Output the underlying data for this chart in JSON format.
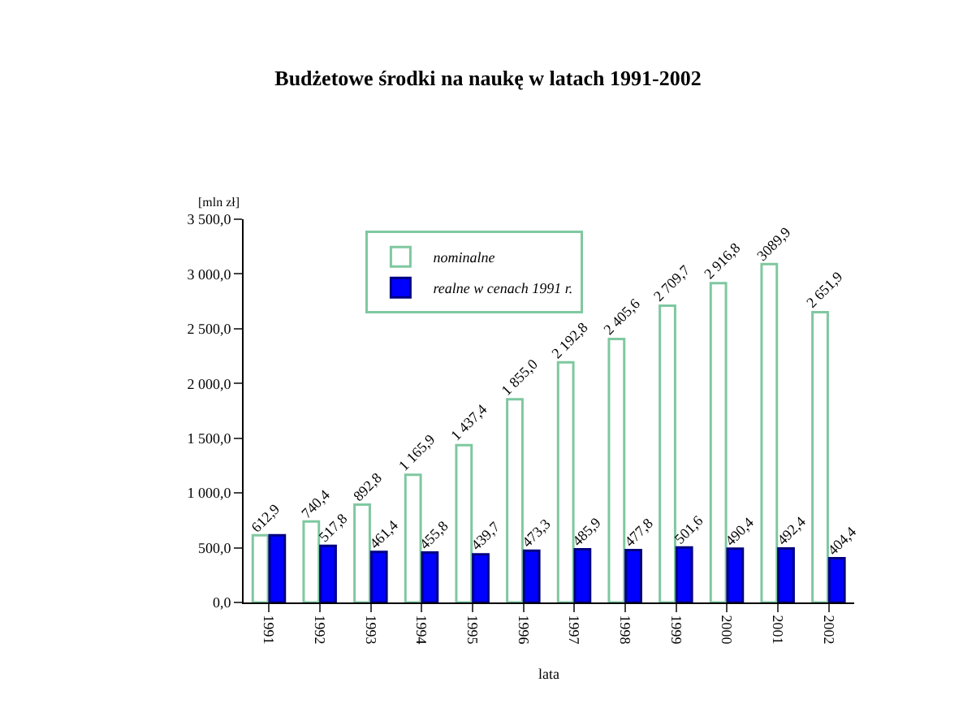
{
  "chart_data": {
    "type": "bar",
    "title": "Budżetowe środki na naukę w latach 1991-2002",
    "ylabel": "[mln zł]",
    "xlabel": "lata",
    "categories": [
      "1991",
      "1992",
      "1993",
      "1994",
      "1995",
      "1996",
      "1997",
      "1998",
      "1999",
      "2000",
      "2001",
      "2002"
    ],
    "series": [
      {
        "name": "nominalne",
        "color": "#7fc8a0",
        "values": [
          612.9,
          740.4,
          892.8,
          1165.9,
          1437.4,
          1855.0,
          2192.8,
          2405.6,
          2709.7,
          2916.8,
          3089.9,
          2651.9
        ],
        "value_labels": [
          "612,9",
          "740,4",
          "892,8",
          "1 165,9",
          "1 437,4",
          "1 855,0",
          "2 192,8",
          "2 405,6",
          "2 709,7",
          "2 916,8",
          "3089,9",
          "2 651,9"
        ]
      },
      {
        "name": "realne w cenach 1991 r.",
        "color": "#0000ff",
        "values": [
          612.9,
          517.8,
          461.4,
          455.8,
          439.7,
          473.3,
          485.9,
          477.8,
          501.6,
          490.4,
          492.4,
          404.4
        ],
        "value_labels": [
          null,
          "517,8",
          "461,4",
          "455,8",
          "439,7",
          "473,3",
          "485,9",
          "477,8",
          "501,6",
          "490,4",
          "492,4",
          "404,4"
        ]
      }
    ],
    "ylim": [
      0,
      3500
    ],
    "yticks": [
      {
        "value": 0,
        "label": "0,0"
      },
      {
        "value": 500,
        "label": "500,0"
      },
      {
        "value": 1000,
        "label": "1 000,0"
      },
      {
        "value": 1500,
        "label": "1 500,0"
      },
      {
        "value": 2000,
        "label": "2 000,0"
      },
      {
        "value": 2500,
        "label": "2 500,0"
      },
      {
        "value": 3000,
        "label": "3 000,0"
      },
      {
        "value": 3500,
        "label": "3 500,0"
      }
    ],
    "legend": "top left"
  }
}
